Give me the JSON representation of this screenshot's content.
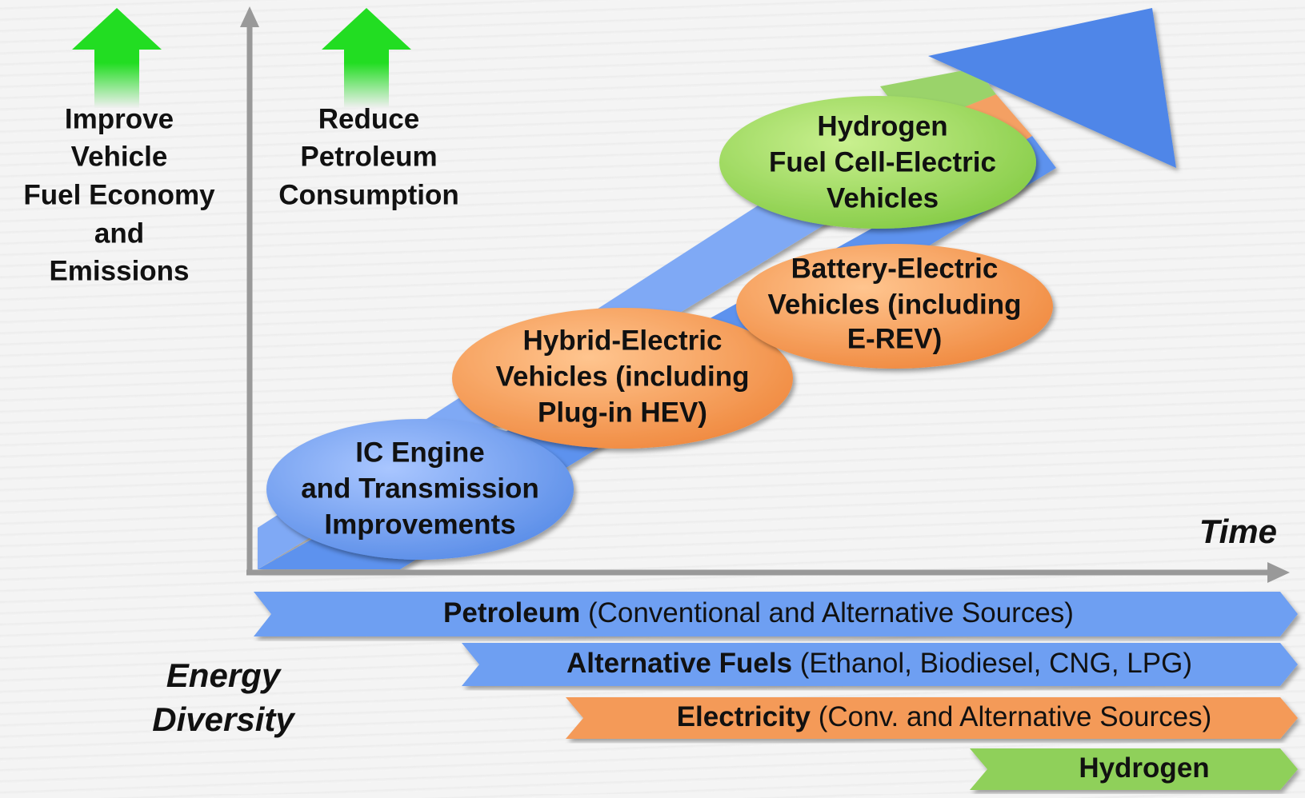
{
  "left_goals": [
    {
      "lines": [
        "Improve",
        "Vehicle",
        "Fuel Economy",
        "and",
        "Emissions"
      ]
    },
    {
      "lines": [
        "Reduce",
        "Petroleum",
        "Consumption"
      ]
    }
  ],
  "x_axis_label": "Time",
  "technologies": [
    {
      "lines": [
        "IC Engine",
        "and Transmission",
        "Improvements"
      ]
    },
    {
      "lines": [
        "Hybrid-Electric",
        "Vehicles (including",
        "Plug-in HEV)"
      ]
    },
    {
      "lines": [
        "Battery-Electric",
        "Vehicles (including",
        "E-REV)"
      ]
    },
    {
      "lines": [
        "Hydrogen",
        "Fuel Cell-Electric",
        "Vehicles"
      ]
    }
  ],
  "energy_diversity": {
    "lines": [
      "Energy",
      "Diversity"
    ]
  },
  "energy_bands": [
    {
      "bold": "Petroleum",
      "detail": "(Conventional and Alternative Sources)"
    },
    {
      "bold": "Alternative Fuels",
      "detail": "(Ethanol, Biodiesel, CNG, LPG)"
    },
    {
      "bold": "Electricity",
      "detail": "(Conv. and Alternative Sources)"
    },
    {
      "bold": "Hydrogen"
    }
  ]
}
